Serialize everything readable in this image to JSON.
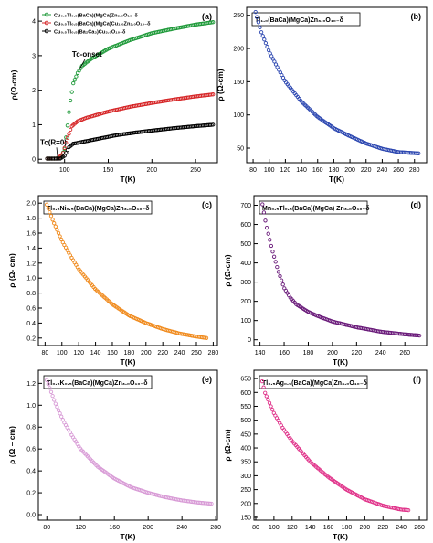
{
  "panels": [
    {
      "type": "line",
      "letter": "(a)",
      "xlabel": "T(K)",
      "ylabel": "ρ(Ω-cm)",
      "xlim": [
        70,
        275
      ],
      "ylim": [
        -0.1,
        4.4
      ],
      "xticks": [
        100,
        150,
        200,
        250
      ],
      "yticks": [
        0,
        1,
        2,
        3,
        4
      ],
      "legend": {
        "placement": "top-left",
        "entries": [
          {
            "label": "Cu₀.₅Tl₀.₅(BaCa)(MgCa)Zn₃.₀O₁₀₋δ",
            "color": "#1f9a3a",
            "marker": "circle"
          },
          {
            "label": "Cu₀.₅Tl₀.₅(BaCa)(MgCa)Cu₁.₀Zn₂.₀O₁₀₋δ",
            "color": "#d62728",
            "marker": "circle"
          },
          {
            "label": "Cu₀.₅Tl₀.₅(Ba₂Ca₃)Cu₃.₀O₁₀₋δ",
            "color": "#000000",
            "marker": "circle"
          }
        ]
      },
      "annotations": [
        {
          "text": "Tc-onset",
          "x": 117,
          "y": 2.65
        },
        {
          "text": "Tc(R=0)",
          "x": 92,
          "y": 0.05
        }
      ],
      "series": [
        {
          "color": "#1f9a3a",
          "x": [
            80,
            90,
            96,
            100,
            103,
            106,
            110,
            115,
            120,
            130,
            150,
            175,
            200,
            225,
            250,
            270
          ],
          "y": [
            0.02,
            0.02,
            0.05,
            0.3,
            0.9,
            1.6,
            2.2,
            2.5,
            2.7,
            2.9,
            3.2,
            3.45,
            3.65,
            3.78,
            3.9,
            3.97
          ]
        },
        {
          "color": "#d62728",
          "x": [
            80,
            92,
            98,
            103,
            108,
            115,
            125,
            150,
            175,
            200,
            225,
            250,
            270
          ],
          "y": [
            0.02,
            0.02,
            0.15,
            0.6,
            0.95,
            1.1,
            1.2,
            1.38,
            1.52,
            1.63,
            1.73,
            1.82,
            1.88
          ]
        },
        {
          "color": "#000000",
          "x": [
            80,
            95,
            100,
            105,
            110,
            120,
            140,
            160,
            180,
            200,
            225,
            250,
            270
          ],
          "y": [
            0.02,
            0.02,
            0.1,
            0.35,
            0.45,
            0.5,
            0.6,
            0.7,
            0.77,
            0.83,
            0.9,
            0.96,
            1.0
          ]
        }
      ]
    },
    {
      "type": "scatter",
      "letter": "(b)",
      "title": "Tl₁.₀(BaCa)(MgCa)Zn₃.₀O₁₀₋δ",
      "xlabel": "T(K)",
      "ylabel": "ρ (Ω-cm)",
      "xlim": [
        72,
        295
      ],
      "ylim": [
        28,
        262
      ],
      "xticks": [
        80,
        100,
        120,
        140,
        160,
        180,
        200,
        220,
        240,
        260,
        280
      ],
      "yticks": [
        50,
        100,
        150,
        200,
        250
      ],
      "series": [
        {
          "color": "#2b46b0",
          "x": [
            83,
            90,
            100,
            110,
            120,
            140,
            160,
            180,
            200,
            220,
            240,
            260,
            285
          ],
          "y": [
            255,
            225,
            195,
            172,
            150,
            120,
            97,
            80,
            68,
            57,
            49,
            44,
            42
          ]
        }
      ]
    },
    {
      "type": "scatter",
      "letter": "(c)",
      "title": "Tl₀.₅Ni₀.₅(BaCa)(MgCa)Zn₃.₀O₁₀₋δ",
      "xlabel": "T(K)",
      "ylabel": "ρ (Ω- cm)",
      "xlim": [
        72,
        285
      ],
      "ylim": [
        0.1,
        2.1
      ],
      "xticks": [
        80,
        100,
        120,
        140,
        160,
        180,
        200,
        220,
        240,
        260,
        280
      ],
      "yticks": [
        0.2,
        0.4,
        0.6,
        0.8,
        1.0,
        1.2,
        1.4,
        1.6,
        1.8,
        2.0
      ],
      "series": [
        {
          "color": "#f08a1c",
          "x": [
            82,
            90,
            100,
            110,
            120,
            140,
            160,
            180,
            200,
            220,
            240,
            260,
            272
          ],
          "y": [
            1.98,
            1.75,
            1.5,
            1.3,
            1.12,
            0.85,
            0.65,
            0.5,
            0.4,
            0.32,
            0.26,
            0.22,
            0.2
          ]
        }
      ]
    },
    {
      "type": "scatter",
      "letter": "(d)",
      "title": "Mn₀.₅Tl₀.₅(BaCa)(MgCa) Zn₃.₀O₁₀₋δ",
      "xlabel": "T(K)",
      "ylabel": "ρ (Ω-cm)",
      "xlim": [
        135,
        278
      ],
      "ylim": [
        -30,
        750
      ],
      "xticks": [
        140,
        160,
        180,
        200,
        220,
        240,
        260
      ],
      "yticks": [
        0,
        100,
        200,
        300,
        400,
        500,
        600,
        700
      ],
      "series": [
        {
          "color": "#6a1b7a",
          "x": [
            142,
            145,
            150,
            155,
            160,
            165,
            170,
            180,
            190,
            200,
            220,
            240,
            260,
            272
          ],
          "y": [
            705,
            600,
            470,
            360,
            270,
            220,
            185,
            145,
            118,
            95,
            65,
            42,
            28,
            22
          ]
        }
      ]
    },
    {
      "type": "scatter",
      "letter": "(e)",
      "title": "Tl₀.₅K₀.₅(BaCa)(MgCa)Zn₃.₀O₁₀₋δ",
      "xlabel": "T(K)",
      "ylabel": "ρ (Ω – cm)",
      "xlim": [
        70,
        282
      ],
      "ylim": [
        -0.05,
        1.32
      ],
      "xticks": [
        80,
        120,
        160,
        200,
        240,
        280
      ],
      "yticks": [
        0.0,
        0.2,
        0.4,
        0.6,
        0.8,
        1.0,
        1.2
      ],
      "series": [
        {
          "color": "#d89bd6",
          "x": [
            80,
            90,
            100,
            110,
            120,
            140,
            160,
            180,
            200,
            220,
            240,
            260,
            275
          ],
          "y": [
            1.23,
            1.02,
            0.85,
            0.72,
            0.6,
            0.44,
            0.33,
            0.25,
            0.2,
            0.16,
            0.13,
            0.11,
            0.1
          ]
        }
      ]
    },
    {
      "type": "scatter",
      "letter": "(f)",
      "title": "Tl₀.₅Ag₀.₅(BaCa)(MgCa)Zn₃.₀O₁₀₋δ",
      "xlabel": "T(K)",
      "ylabel": "ρ (Ω-cm)",
      "xlim": [
        78,
        268
      ],
      "ylim": [
        140,
        680
      ],
      "xticks": [
        80,
        100,
        120,
        140,
        160,
        180,
        200,
        220,
        240,
        260
      ],
      "yticks": [
        150,
        200,
        250,
        300,
        350,
        400,
        450,
        500,
        550,
        600,
        650
      ],
      "series": [
        {
          "color": "#e0338a",
          "x": [
            87,
            90,
            100,
            110,
            120,
            140,
            160,
            180,
            200,
            220,
            240,
            248
          ],
          "y": [
            640,
            600,
            525,
            470,
            425,
            350,
            295,
            250,
            215,
            192,
            178,
            176
          ]
        }
      ]
    }
  ]
}
